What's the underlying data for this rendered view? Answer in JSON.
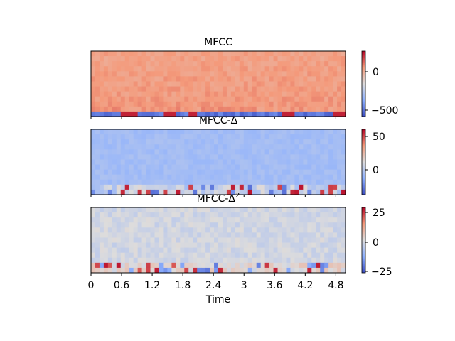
{
  "chart_data": [
    {
      "type": "heatmap",
      "title": "MFCC",
      "xlabel": "",
      "ylabel": "",
      "colormap": "coolwarm",
      "colorbar": {
        "range": [
          -560,
          280
        ],
        "ticks": [
          0,
          -500
        ],
        "tick_labels": [
          "0",
          "−500"
        ]
      },
      "grid": false
    },
    {
      "type": "heatmap",
      "title": "MFCC-Δ",
      "xlabel": "",
      "ylabel": "",
      "colormap": "coolwarm",
      "colorbar": {
        "range": [
          -34,
          60
        ],
        "ticks": [
          50,
          0
        ],
        "tick_labels": [
          "50",
          "0"
        ]
      },
      "grid": false
    },
    {
      "type": "heatmap",
      "title_base": "MFCC-Δ",
      "title_sup": "2",
      "xlabel": "Time",
      "ylabel": "",
      "colormap": "coolwarm",
      "colorbar": {
        "range": [
          -26,
          33
        ],
        "ticks": [
          25,
          0,
          -25
        ],
        "tick_labels": [
          "25",
          "0",
          "−25"
        ]
      },
      "x_ticks": [
        0,
        0.6,
        1.2,
        1.8,
        2.4,
        3,
        3.6,
        4.2,
        4.8
      ],
      "x_tick_labels": [
        "0",
        "0.6",
        "1.2",
        "1.8",
        "2.4",
        "3",
        "3.6",
        "4.2",
        "4.8"
      ],
      "xlim": [
        0,
        4.99
      ],
      "grid": false
    }
  ]
}
